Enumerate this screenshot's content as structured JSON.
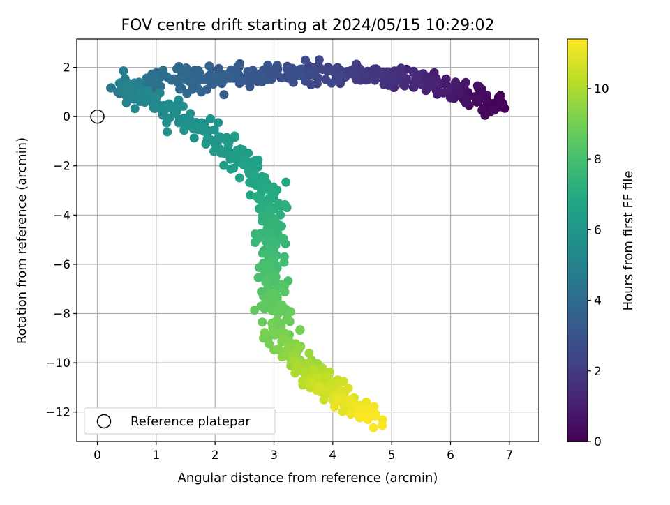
{
  "chart_data": {
    "type": "scatter",
    "title": "FOV centre drift starting at 2024/05/15 10:29:02",
    "xlabel": "Angular distance from reference (arcmin)",
    "ylabel": "Rotation from reference (arcmin)",
    "xlim": [
      -0.35,
      7.5
    ],
    "ylim": [
      -13.2,
      3.15
    ],
    "xticks": [
      0,
      1,
      2,
      3,
      4,
      5,
      6,
      7
    ],
    "yticks": [
      -12,
      -10,
      -8,
      -6,
      -4,
      -2,
      0,
      2
    ],
    "grid": true,
    "legend": {
      "position": "lower-left",
      "label": "Reference platepar"
    },
    "colorbar": {
      "label": "Hours from first FF file",
      "range": [
        0,
        11.4
      ],
      "ticks": [
        0,
        2,
        4,
        6,
        8,
        10
      ],
      "colormap": "viridis"
    },
    "reference_point": {
      "x": 0,
      "y": 0
    },
    "trajectory_hours": [
      0,
      0.5,
      1.0,
      1.5,
      2.0,
      2.5,
      3.0,
      3.5,
      4.0,
      4.5,
      5.0,
      5.5,
      6.0,
      6.5,
      7.0,
      7.5,
      8.0,
      8.5,
      9.0,
      9.5,
      10.0,
      10.5,
      11.0,
      11.4
    ],
    "trajectory_x": [
      6.9,
      6.3,
      5.7,
      5.1,
      4.4,
      3.6,
      2.8,
      2.0,
      1.2,
      0.5,
      0.5,
      1.3,
      2.0,
      2.6,
      2.9,
      2.95,
      2.95,
      3.0,
      3.15,
      3.3,
      3.6,
      3.9,
      4.3,
      4.7
    ],
    "trajectory_y": [
      0.4,
      0.9,
      1.3,
      1.6,
      1.8,
      1.8,
      1.7,
      1.6,
      1.5,
      1.2,
      1.0,
      0.2,
      -0.8,
      -2.0,
      -3.3,
      -4.8,
      -6.2,
      -7.5,
      -8.8,
      -9.8,
      -10.5,
      -11.0,
      -11.8,
      -12.3
    ],
    "point_count": 900,
    "color_reference_marker": "#000000"
  }
}
